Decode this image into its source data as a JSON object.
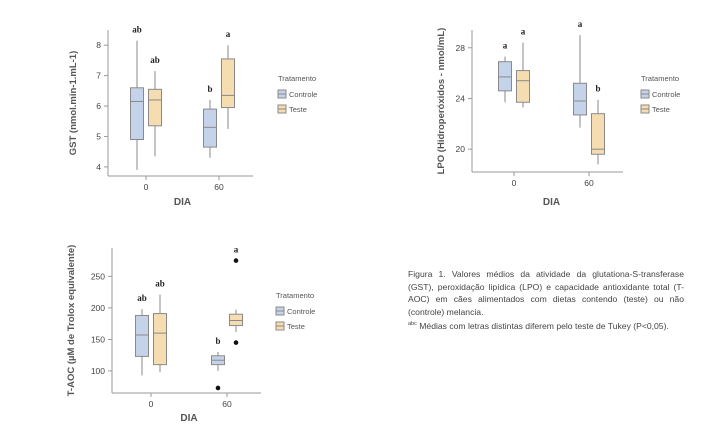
{
  "chart_data": [
    {
      "type": "box",
      "ylabel": "GST (nmol.min-1.mL-1)",
      "xlabel": "DIA",
      "categories": [
        "0",
        "60"
      ],
      "ylim": [
        3.7,
        8.5
      ],
      "yticks": [
        4,
        5,
        6,
        7,
        8
      ],
      "legend_title": "Tratamento",
      "legend_placement": "right",
      "series": [
        {
          "name": "Controle",
          "color": "#c5d3ea",
          "boxes": [
            {
              "min": 3.9,
              "q1": 4.9,
              "median": 6.15,
              "q3": 6.6,
              "max": 8.15,
              "letter": "ab",
              "outliers": []
            },
            {
              "min": 4.3,
              "q1": 4.65,
              "median": 5.3,
              "q3": 5.9,
              "max": 6.2,
              "letter": "b",
              "outliers": []
            }
          ]
        },
        {
          "name": "Teste",
          "color": "#f6ddb1",
          "boxes": [
            {
              "min": 4.35,
              "q1": 5.35,
              "median": 6.2,
              "q3": 6.55,
              "max": 7.15,
              "letter": "ab",
              "outliers": []
            },
            {
              "min": 5.25,
              "q1": 5.95,
              "median": 6.35,
              "q3": 7.55,
              "max": 8.0,
              "letter": "a",
              "outliers": []
            }
          ]
        }
      ]
    },
    {
      "type": "box",
      "ylabel": "LPO (Hidroperóxidos - nmol/mL)",
      "xlabel": "DIA",
      "categories": [
        "0",
        "60"
      ],
      "ylim": [
        18.2,
        29.4
      ],
      "yticks": [
        20,
        24,
        28
      ],
      "legend_title": "Tratamento",
      "legend_placement": "right",
      "series": [
        {
          "name": "Controle",
          "color": "#c5d3ea",
          "boxes": [
            {
              "min": 23.7,
              "q1": 24.6,
              "median": 25.7,
              "q3": 26.9,
              "max": 27.3,
              "letter": "a",
              "outliers": []
            },
            {
              "min": 21.7,
              "q1": 22.7,
              "median": 23.8,
              "q3": 25.2,
              "max": 29.0,
              "letter": "a",
              "outliers": []
            }
          ]
        },
        {
          "name": "Teste",
          "color": "#f6ddb1",
          "boxes": [
            {
              "min": 23.3,
              "q1": 23.7,
              "median": 25.4,
              "q3": 26.2,
              "max": 28.4,
              "letter": "a",
              "outliers": []
            },
            {
              "min": 18.8,
              "q1": 19.6,
              "median": 20.0,
              "q3": 22.8,
              "max": 23.9,
              "letter": "b",
              "outliers": []
            }
          ]
        }
      ]
    },
    {
      "type": "box",
      "ylabel": "T-AOC (µM de Trolox equivalente)",
      "xlabel": "DIA",
      "categories": [
        "0",
        "60"
      ],
      "ylim": [
        65,
        295
      ],
      "yticks": [
        100,
        150,
        200,
        250
      ],
      "legend_title": "Tratamento",
      "legend_placement": "right",
      "series": [
        {
          "name": "Controle",
          "color": "#c5d3ea",
          "boxes": [
            {
              "min": 93,
              "q1": 123,
              "median": 157,
              "q3": 188,
              "max": 198,
              "letter": "ab",
              "outliers": []
            },
            {
              "min": 100,
              "q1": 110,
              "median": 117,
              "q3": 124,
              "max": 130,
              "letter": "b",
              "outliers": [
                73
              ]
            }
          ]
        },
        {
          "name": "Teste",
          "color": "#f6ddb1",
          "boxes": [
            {
              "min": 98,
              "q1": 110,
              "median": 160,
              "q3": 191,
              "max": 221,
              "letter": "ab",
              "outliers": []
            },
            {
              "min": 162,
              "q1": 172,
              "median": 180,
              "q3": 190,
              "max": 197,
              "letter": "a",
              "outliers": [
                275,
                145
              ]
            }
          ]
        }
      ]
    }
  ],
  "caption": {
    "text": "Figura 1. Valores médios da atividade da glutationa-S-transferase (GST), peroxidação lipídica (LPO) e capacidade antioxidante total (T-AOC) em cães alimentados com dietas contendo (teste) ou não (controle) melancia.",
    "note_sup": "abc",
    "note": " Médias com letras distintas diferem pelo teste de Tukey (P<0,05)."
  }
}
